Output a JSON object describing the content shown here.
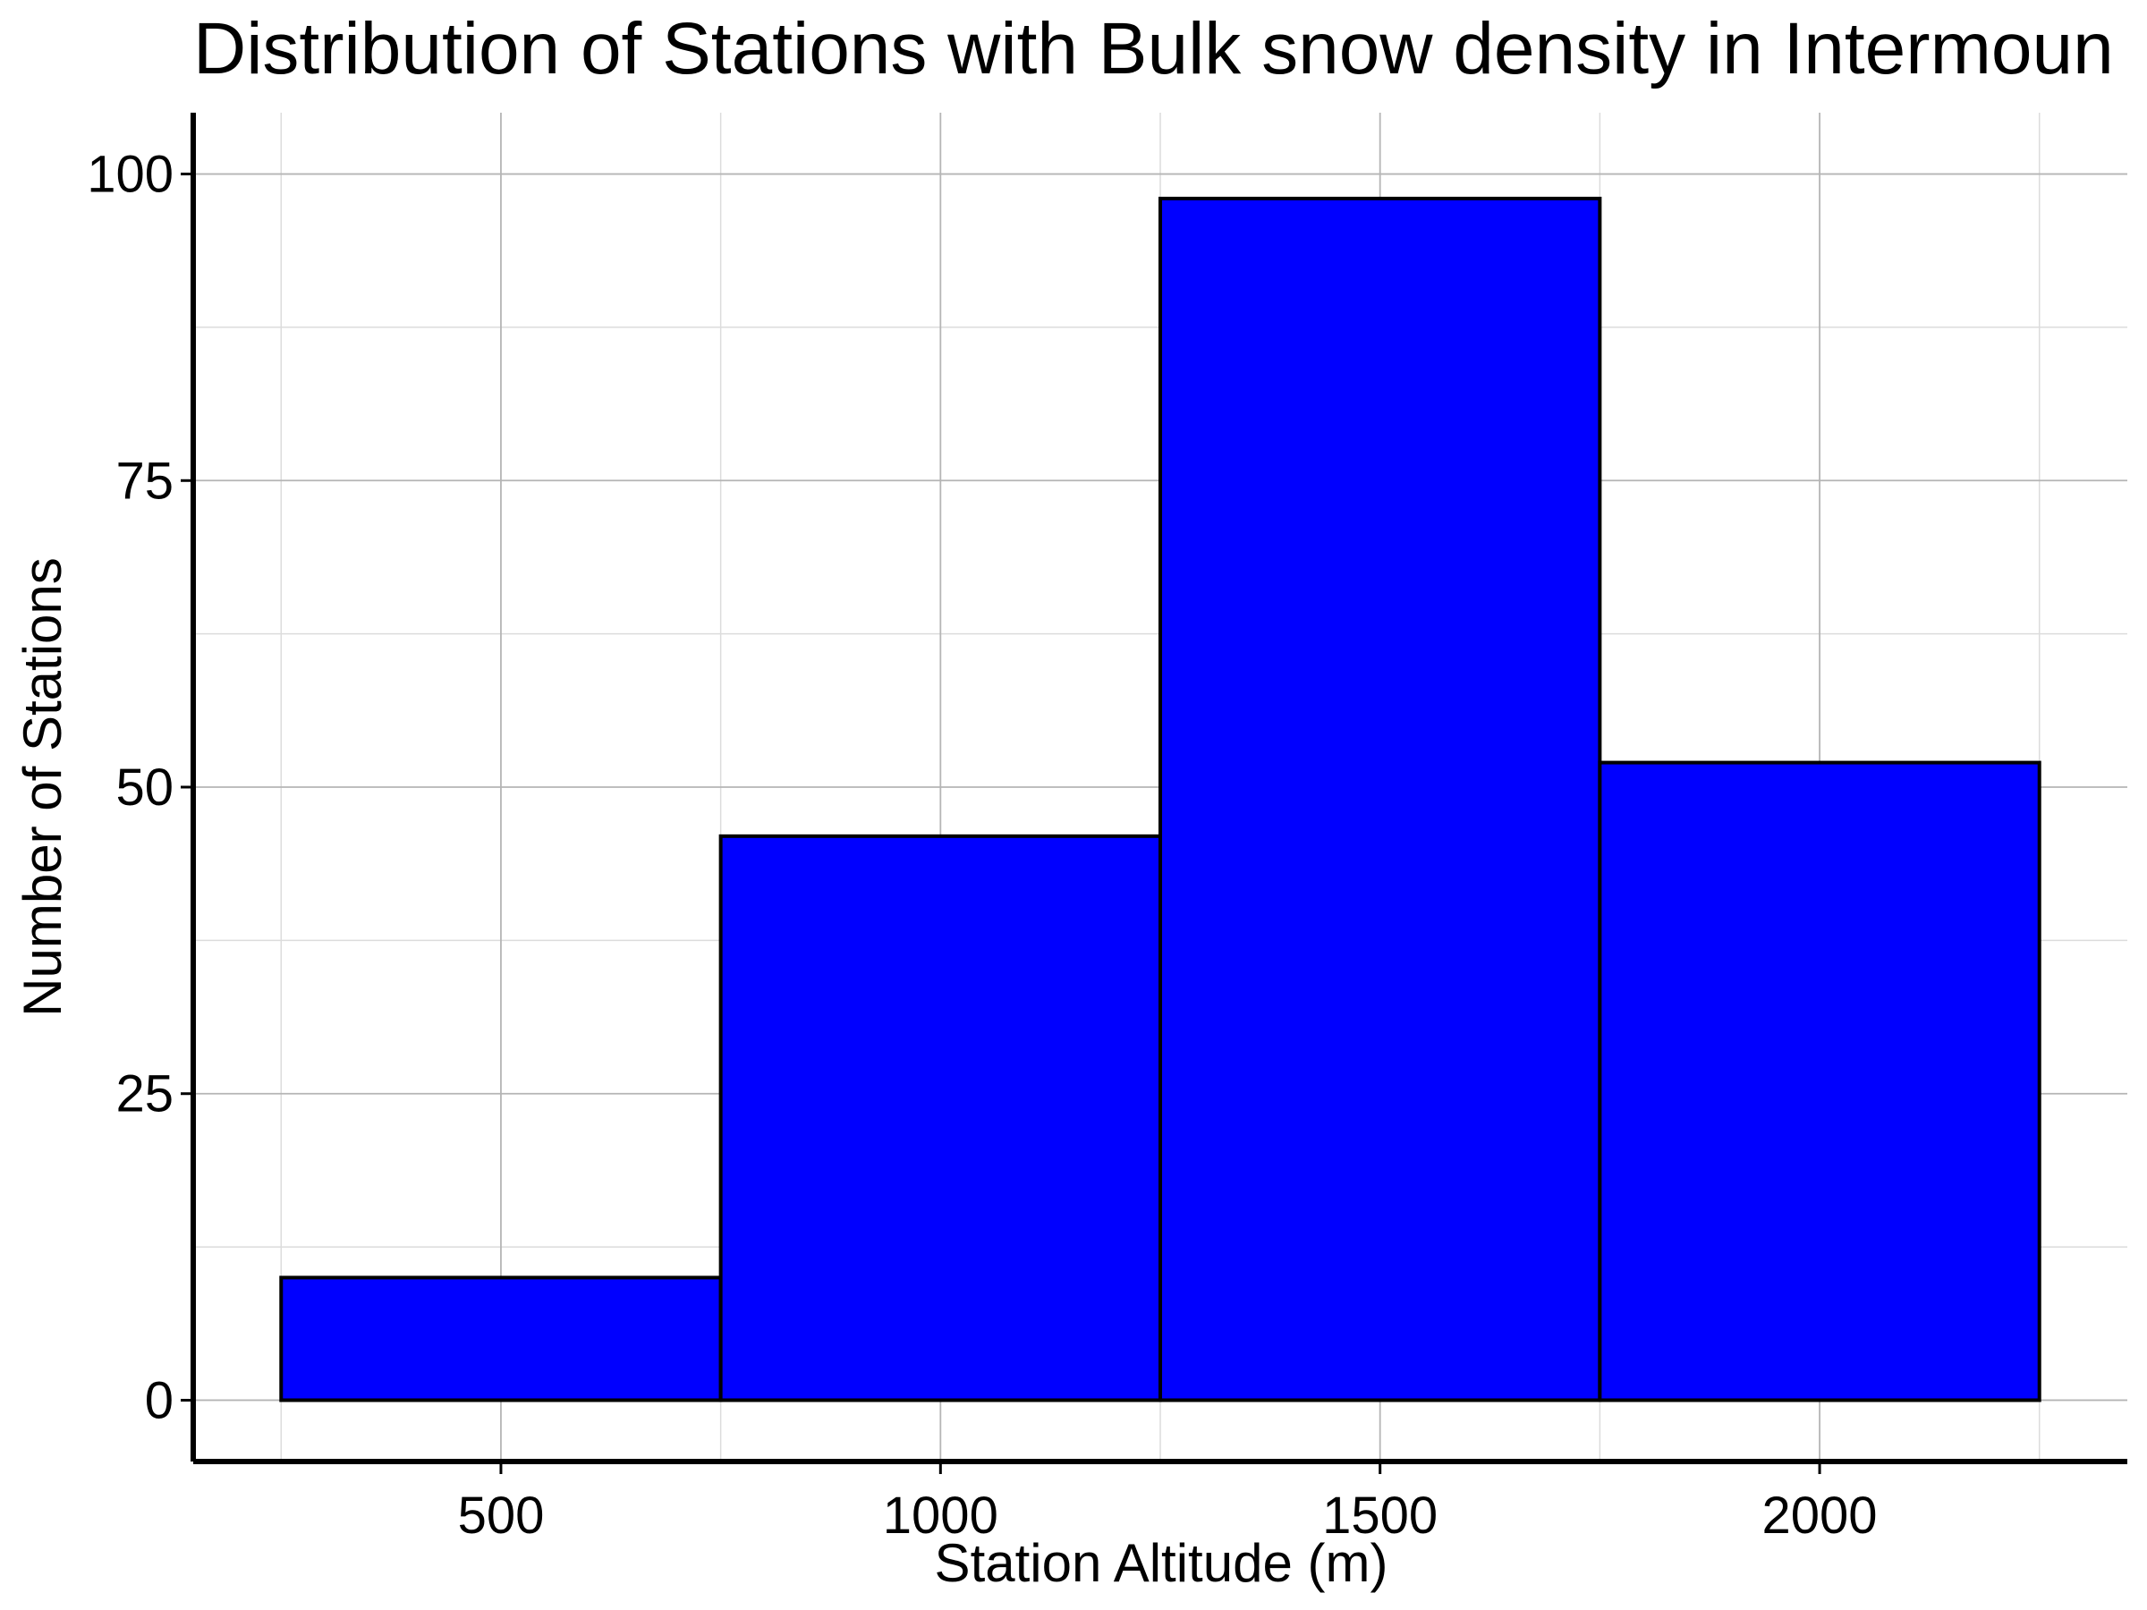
{
  "chart_data": {
    "type": "bar",
    "title": "Distribution of Stations with Bulk snow density in Intermoun",
    "xlabel": "Station Altitude (m)",
    "ylabel": "Number of Stations",
    "bins": [
      {
        "start": 250,
        "end": 750,
        "value": 10
      },
      {
        "start": 750,
        "end": 1250,
        "value": 46
      },
      {
        "start": 1250,
        "end": 1750,
        "value": 98
      },
      {
        "start": 1750,
        "end": 2250,
        "value": 52
      }
    ],
    "xlim": [
      150,
      2350
    ],
    "ylim": [
      -5,
      105
    ],
    "xticks": [
      500,
      1000,
      1500,
      2000
    ],
    "yticks": [
      0,
      25,
      50,
      75,
      100
    ],
    "xtick_labels": [
      "500",
      "1000",
      "1500",
      "2000"
    ],
    "ytick_labels": [
      "0",
      "25",
      "50",
      "75",
      "100"
    ],
    "grid": true,
    "legend": "none",
    "colors": {
      "bar_fill": "#0000ff",
      "bar_edge": "#000000",
      "grid_major": "#b5b5b5",
      "grid_minor": "#dcdcdc",
      "axis": "#000000"
    }
  }
}
